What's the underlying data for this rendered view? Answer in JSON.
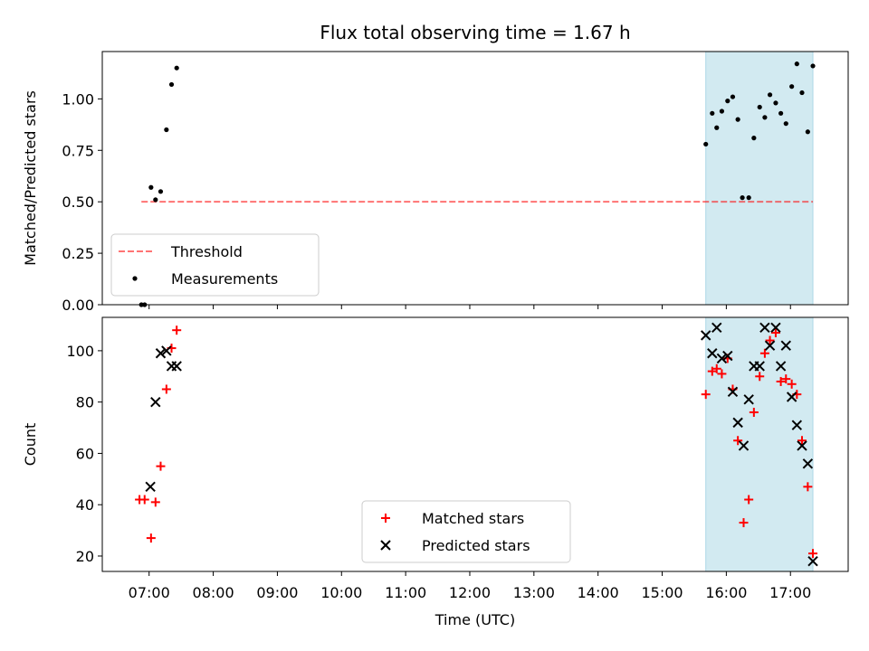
{
  "chart_data": {
    "type": "scatter",
    "title": "Flux total observing time = 1.67 h",
    "xlabel": "Time (UTC)",
    "x_tick_labels": [
      "07:00",
      "08:00",
      "09:00",
      "10:00",
      "11:00",
      "12:00",
      "13:00",
      "14:00",
      "15:00",
      "16:00",
      "17:00"
    ],
    "x_ticks_hours": [
      7,
      8,
      9,
      10,
      11,
      12,
      13,
      14,
      15,
      16,
      17
    ],
    "xlim_hours": [
      6.27,
      17.9
    ],
    "shaded_region_hours": [
      15.68,
      17.35
    ],
    "colors": {
      "shade": "#add8e6",
      "threshold": "#ff0000",
      "matched": "#ff0000",
      "predicted": "#000000",
      "measurements": "#000000"
    },
    "panels": [
      {
        "ylabel": "Matched/Predicted stars",
        "ylim": [
          0,
          1.23
        ],
        "y_ticks": [
          0,
          0.25,
          0.5,
          0.75,
          1.0
        ],
        "y_tick_labels": [
          "0.00",
          "0.25",
          "0.50",
          "0.75",
          "1.00"
        ],
        "legend_position": "lower-left",
        "threshold": {
          "name": "Threshold",
          "value": 0.5,
          "x_range_hours": [
            6.88,
            17.35
          ]
        },
        "series": [
          {
            "name": "Measurements",
            "marker": "dot",
            "x_hours": [
              6.88,
              6.93,
              7.03,
              7.1,
              7.18,
              7.27,
              7.35,
              7.43,
              15.68,
              15.78,
              15.85,
              15.93,
              16.02,
              16.1,
              16.18,
              16.25,
              16.35,
              16.43,
              16.52,
              16.6,
              16.68,
              16.77,
              16.85,
              16.93,
              17.02,
              17.1,
              17.18,
              17.27,
              17.35
            ],
            "y": [
              0.0,
              0.0,
              0.57,
              0.51,
              0.55,
              0.85,
              1.07,
              1.15,
              0.78,
              0.93,
              0.86,
              0.94,
              0.99,
              1.01,
              0.9,
              0.52,
              0.52,
              0.81,
              0.96,
              0.91,
              1.02,
              0.98,
              0.93,
              0.88,
              1.06,
              1.17,
              1.03,
              0.84,
              1.16
            ]
          }
        ]
      },
      {
        "ylabel": "Count",
        "ylim": [
          14,
          113
        ],
        "y_ticks": [
          20,
          40,
          60,
          80,
          100
        ],
        "y_tick_labels": [
          "20",
          "40",
          "60",
          "80",
          "100"
        ],
        "legend_position": "lower-center",
        "series": [
          {
            "name": "Matched stars",
            "marker": "plus",
            "x_hours": [
              6.85,
              6.93,
              7.03,
              7.1,
              7.18,
              7.27,
              7.35,
              7.43,
              15.68,
              15.78,
              15.85,
              15.93,
              16.02,
              16.1,
              16.18,
              16.27,
              16.35,
              16.43,
              16.52,
              16.6,
              16.68,
              16.77,
              16.85,
              16.93,
              17.02,
              17.1,
              17.18,
              17.27,
              17.35
            ],
            "y": [
              42,
              42,
              27,
              41,
              55,
              85,
              101,
              108,
              83,
              92,
              93,
              91,
              97,
              85,
              65,
              33,
              42,
              76,
              90,
              99,
              104,
              107,
              88,
              89,
              87,
              83,
              65,
              47,
              21
            ]
          },
          {
            "name": "Predicted stars",
            "marker": "x",
            "x_hours": [
              7.02,
              7.1,
              7.18,
              7.27,
              7.35,
              7.43,
              15.68,
              15.78,
              15.85,
              15.93,
              16.02,
              16.1,
              16.18,
              16.27,
              16.35,
              16.43,
              16.52,
              16.6,
              16.68,
              16.77,
              16.85,
              16.93,
              17.02,
              17.1,
              17.18,
              17.27,
              17.35
            ],
            "y": [
              47,
              80,
              99,
              100,
              94,
              94,
              106,
              99,
              109,
              97,
              98,
              84,
              72,
              63,
              81,
              94,
              94,
              109,
              102,
              109,
              94,
              102,
              82,
              71,
              63,
              56,
              18
            ]
          }
        ]
      }
    ]
  }
}
